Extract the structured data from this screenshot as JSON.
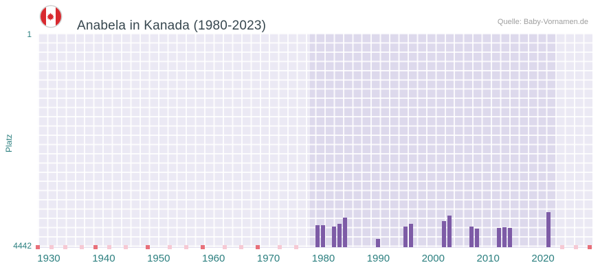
{
  "header": {
    "title": "Anabela in Kanada (1980-2023)",
    "source": "Quelle: Baby-Vornamen.de",
    "flag_icon": "canada-flag"
  },
  "chart_data": {
    "type": "bar",
    "title": "Anabela in Kanada (1980-2023)",
    "xlabel": "",
    "ylabel": "Platz",
    "y_axis": {
      "top_label": "1",
      "bottom_label": "4442",
      "min": 1,
      "max": 4442,
      "inverted": true
    },
    "x_ticks": [
      "1930",
      "1940",
      "1950",
      "1960",
      "1970",
      "1980",
      "1990",
      "2000",
      "2010",
      "2020"
    ],
    "x_domain": [
      1928,
      2029
    ],
    "grid": true,
    "legend": "none",
    "bars": [
      {
        "year": 1979,
        "rank": 3980
      },
      {
        "year": 1980,
        "rank": 3985
      },
      {
        "year": 1982,
        "rank": 4010
      },
      {
        "year": 1983,
        "rank": 3955
      },
      {
        "year": 1984,
        "rank": 3825
      },
      {
        "year": 1990,
        "rank": 4270
      },
      {
        "year": 1995,
        "rank": 4015
      },
      {
        "year": 1996,
        "rank": 3955
      },
      {
        "year": 2002,
        "rank": 3895
      },
      {
        "year": 2003,
        "rank": 3790
      },
      {
        "year": 2007,
        "rank": 4010
      },
      {
        "year": 2008,
        "rank": 4055
      },
      {
        "year": 2012,
        "rank": 4040
      },
      {
        "year": 2013,
        "rank": 4030
      },
      {
        "year": 2014,
        "rank": 4040
      },
      {
        "year": 2021,
        "rank": 3715
      }
    ],
    "highlight_band": {
      "from": 1977.5,
      "to": 2022.5
    },
    "unranked_marks": {
      "light": [
        1930.5,
        1933,
        1936,
        1941,
        1944,
        1952,
        1955,
        1962,
        1965,
        1972,
        1975,
        2023.5,
        2026
      ],
      "strong": [
        1928,
        1938.5,
        1948,
        1958,
        1968,
        2028.5
      ]
    },
    "colors": {
      "bar": "#7d5ba6",
      "plot_bg": "#ebe9f4",
      "band_bg": "#ddd9ec",
      "axis_label": "#2b7f7f",
      "title": "#37474f",
      "source": "#9e9e9e",
      "mark_light": "#f6c9d4",
      "mark_strong": "#e8707a",
      "flag_red": "#d8292f"
    }
  }
}
